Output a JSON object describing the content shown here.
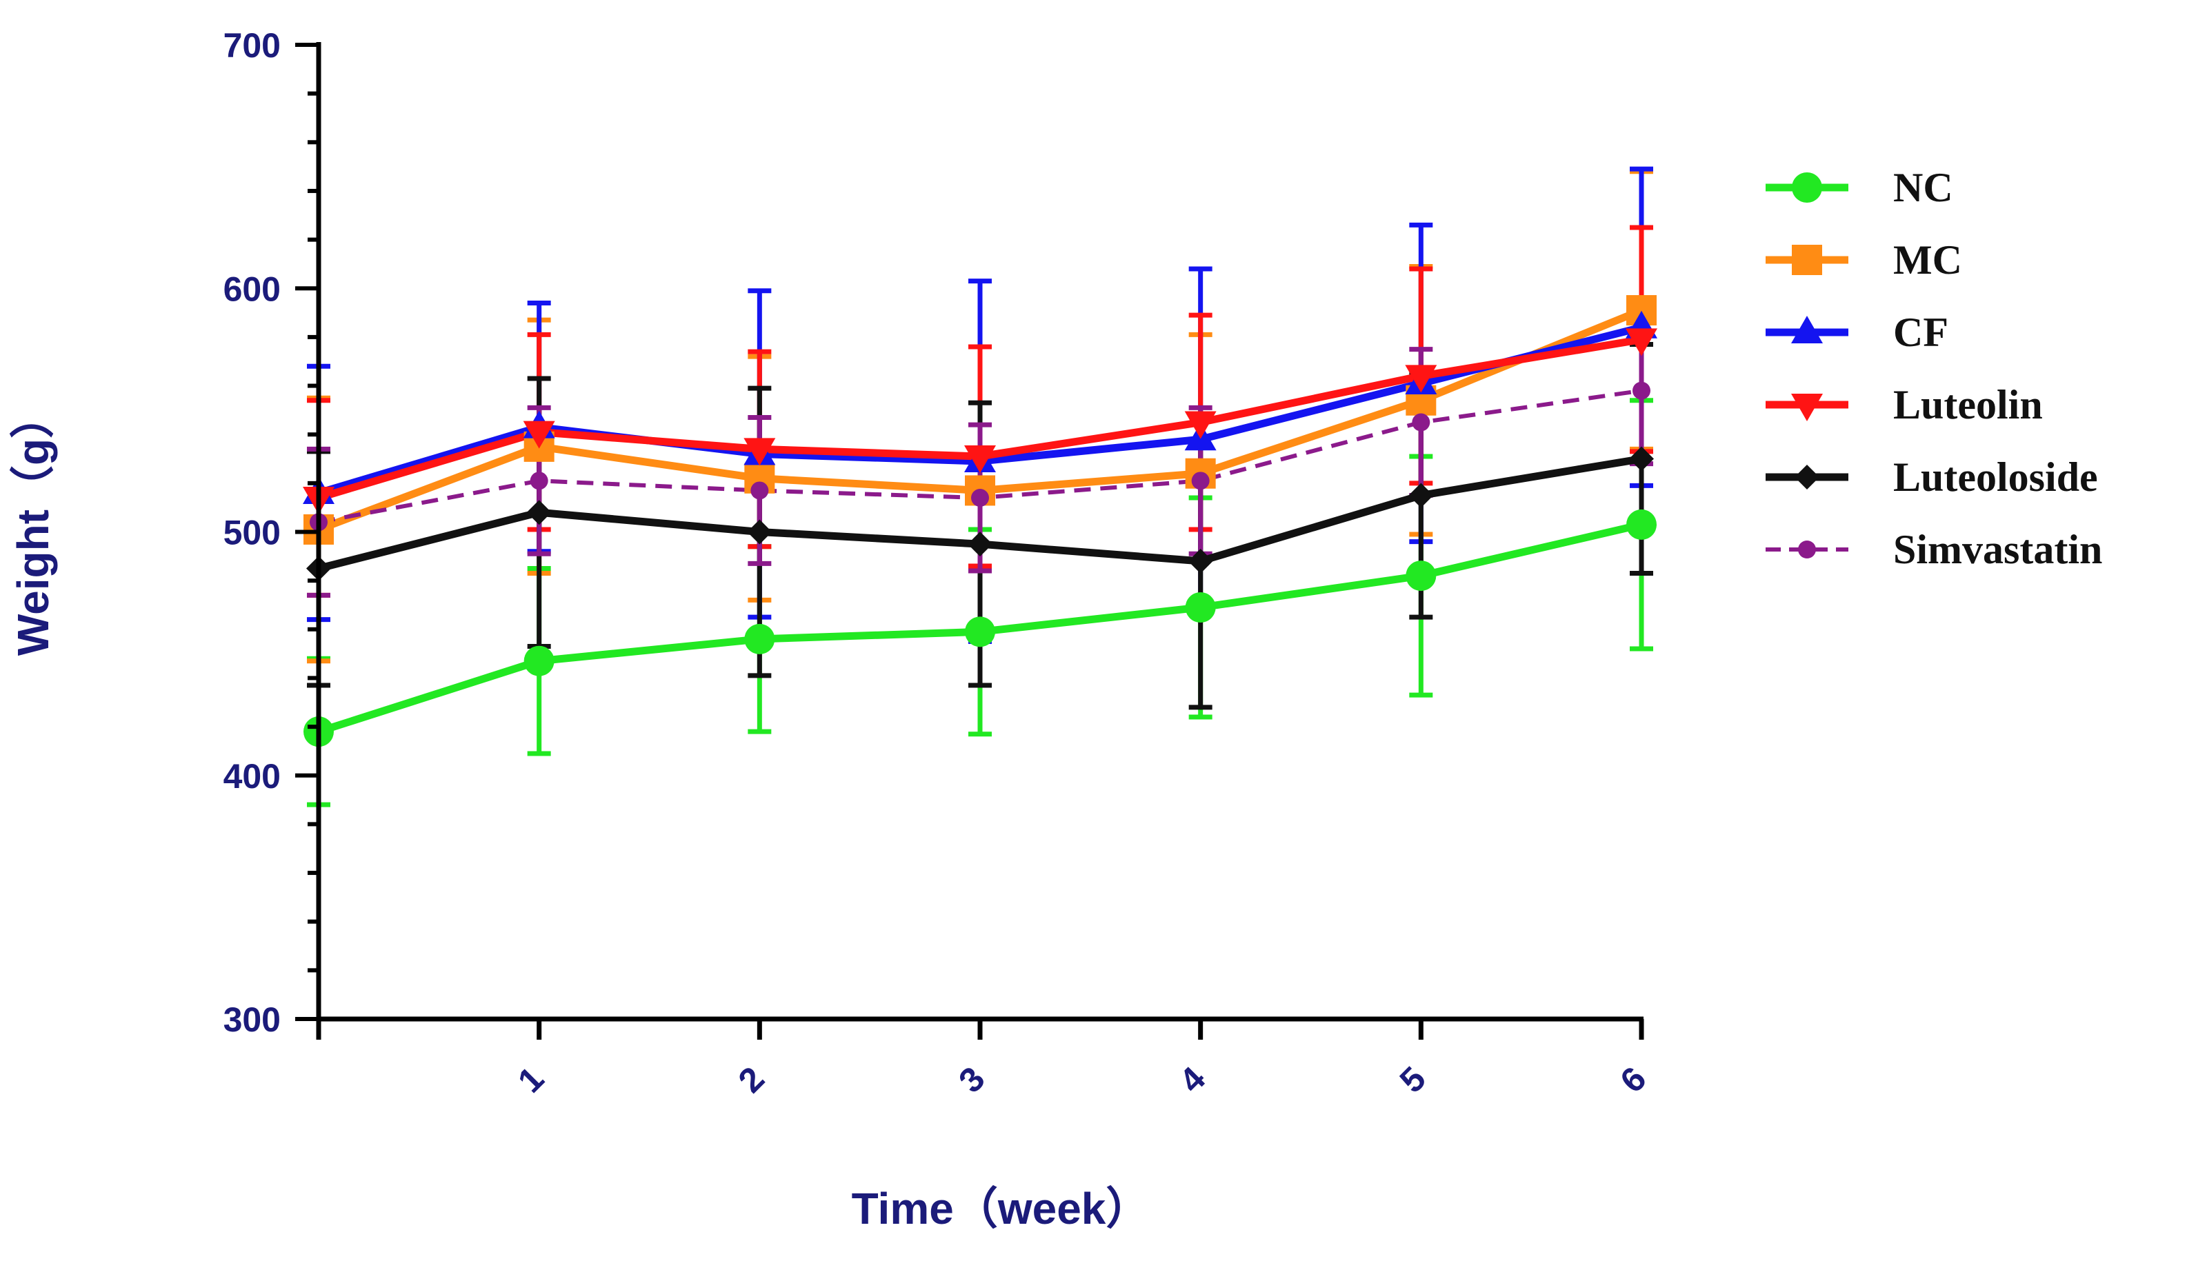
{
  "chart_data": {
    "type": "line",
    "title": "",
    "xlabel": "Time（week）",
    "ylabel": "Weight（g）",
    "x": [
      0,
      1,
      2,
      3,
      4,
      5,
      6
    ],
    "x_tick_labels": [
      "1",
      "2",
      "3",
      "4",
      "5",
      "6"
    ],
    "ylim": [
      300,
      700
    ],
    "y_ticks": [
      300,
      400,
      500,
      600,
      700
    ],
    "grid": false,
    "legend_position": "right",
    "series": [
      {
        "name": "NC",
        "color": "#22e822",
        "marker": "circle",
        "dashed": false,
        "values": [
          418,
          447,
          456,
          459,
          469,
          482,
          503
        ],
        "errors": [
          30,
          38,
          38,
          42,
          45,
          49,
          51
        ]
      },
      {
        "name": "MC",
        "color": "#ff8c14",
        "marker": "square",
        "dashed": false,
        "values": [
          501,
          535,
          522,
          517,
          524,
          554,
          591
        ],
        "errors": [
          54,
          52,
          50,
          59,
          57,
          55,
          57
        ]
      },
      {
        "name": "CF",
        "color": "#1414f0",
        "marker": "triangle-up",
        "dashed": false,
        "values": [
          516,
          543,
          532,
          529,
          538,
          561,
          584
        ],
        "errors": [
          52,
          51,
          67,
          74,
          70,
          65,
          65
        ]
      },
      {
        "name": "Luteolin",
        "color": "#ff1414",
        "marker": "triangle-down",
        "dashed": false,
        "values": [
          514,
          541,
          534,
          531,
          545,
          564,
          579
        ],
        "errors": [
          40,
          40,
          40,
          45,
          44,
          44,
          46
        ]
      },
      {
        "name": "Luteoloside",
        "color": "#111111",
        "marker": "diamond",
        "dashed": false,
        "values": [
          485,
          508,
          500,
          495,
          488,
          515,
          530
        ],
        "errors": [
          48,
          55,
          59,
          58,
          60,
          50,
          47
        ]
      },
      {
        "name": "Simvastatin",
        "color": "#8b1a8b",
        "marker": "small-circle",
        "dashed": true,
        "values": [
          504,
          521,
          517,
          514,
          521,
          545,
          558
        ],
        "errors": [
          30,
          30,
          30,
          30,
          30,
          30,
          30
        ]
      }
    ]
  }
}
